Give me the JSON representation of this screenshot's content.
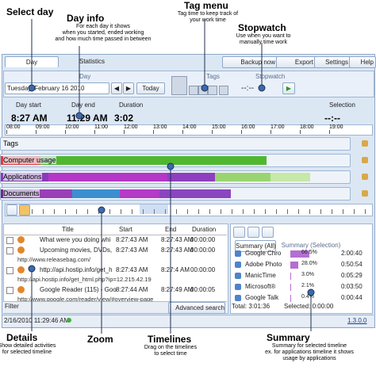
{
  "callouts": {
    "select_day": {
      "title": "Select day"
    },
    "day_info": {
      "title": "Day info",
      "lines": [
        "For each day it shows",
        "when you started, ended working",
        "and how much time passed in between"
      ]
    },
    "tag_menu": {
      "title": "Tag menu",
      "lines": [
        "Tag time to keep track of",
        "your work time"
      ]
    },
    "stopwatch": {
      "title": "Stopwatch",
      "lines": [
        "Use when you want to",
        "manually time work"
      ]
    },
    "details": {
      "title": "Details",
      "lines": [
        "Show detailed activities",
        "for selected timeline"
      ]
    },
    "zoom": {
      "title": "Zoom"
    },
    "timelines": {
      "title": "Timelines",
      "lines": [
        "Drag on the timelines",
        "to select time"
      ]
    },
    "summary": {
      "title": "Summary",
      "lines": [
        "Summary for selected timeline",
        "ex. for applications timeline it shows",
        "usage by applications"
      ]
    }
  },
  "app": {
    "tabs": [
      "Day",
      "Statistics"
    ],
    "buttons": [
      "Backup now",
      "Export",
      "Settings",
      "Help"
    ],
    "date": "Tuesday, February 16 2010",
    "today": "Today",
    "groups": [
      "Day",
      "Tags",
      "Stopwatch"
    ],
    "stopwatch_display": "--:--",
    "info": {
      "labels": [
        "Day start",
        "Day end",
        "Duration",
        "Selection"
      ],
      "values": [
        "8:27 AM",
        "11:29 AM",
        "3:02",
        "--:--"
      ]
    },
    "ruler": [
      "08:00",
      "09:00",
      "10:00",
      "11:00",
      "12:00",
      "13:00",
      "14:00",
      "15:00",
      "16:00",
      "17:00",
      "18:00",
      "19:00"
    ],
    "tracks": [
      "Tags",
      "Computer usage",
      "Applications",
      "Documents"
    ],
    "details": {
      "columns": [
        "Title",
        "Start",
        "End",
        "Duration"
      ],
      "rows": [
        [
          "What were you doing whi",
          "8:27:43 AM",
          "8:27:43 AM",
          "00:00:00"
        ],
        [
          "Upcoming movies, DVDs,",
          "8:27:43 AM",
          "8:27:43 AM",
          "00:00:00"
        ],
        [
          "http://www.releasebag.com/",
          "",
          "",
          ""
        ],
        [
          "http://api.hostip.info/get_h",
          "8:27:43 AM",
          "8:27:4 AM",
          "00:00:00"
        ],
        [
          "http://api.hostip.info/get_html.php?ip=12.215.42.19",
          "",
          "",
          ""
        ],
        [
          "Google Reader (115) - Goo",
          "8:27:44 AM",
          "8:27:49 AM",
          "00:00:05"
        ],
        [
          "http://www.google.com/reader/view/#overview-page",
          "",
          "",
          ""
        ]
      ],
      "filter": "Filter",
      "search": "Advanced search"
    },
    "summary": {
      "tabs": [
        "Summary (All)",
        "Summary (Selection)"
      ],
      "rows": [
        [
          "Google Chro",
          "66.5%",
          "2:00:40"
        ],
        [
          "Adobe Photo",
          "28.0%",
          "0:50:54"
        ],
        [
          "ManicTime",
          "3.0%",
          "0:05:29"
        ],
        [
          "Microsoft®",
          "2.1%",
          "0:03:50"
        ],
        [
          "Google Talk",
          "0.4%",
          "0:00:44"
        ]
      ],
      "total": "Total: 3:01:36",
      "selected": "Selected: 0:00:00"
    },
    "status": {
      "time": "2/16/2010 11:29:46 AM",
      "version": "1.3.0.0"
    }
  }
}
